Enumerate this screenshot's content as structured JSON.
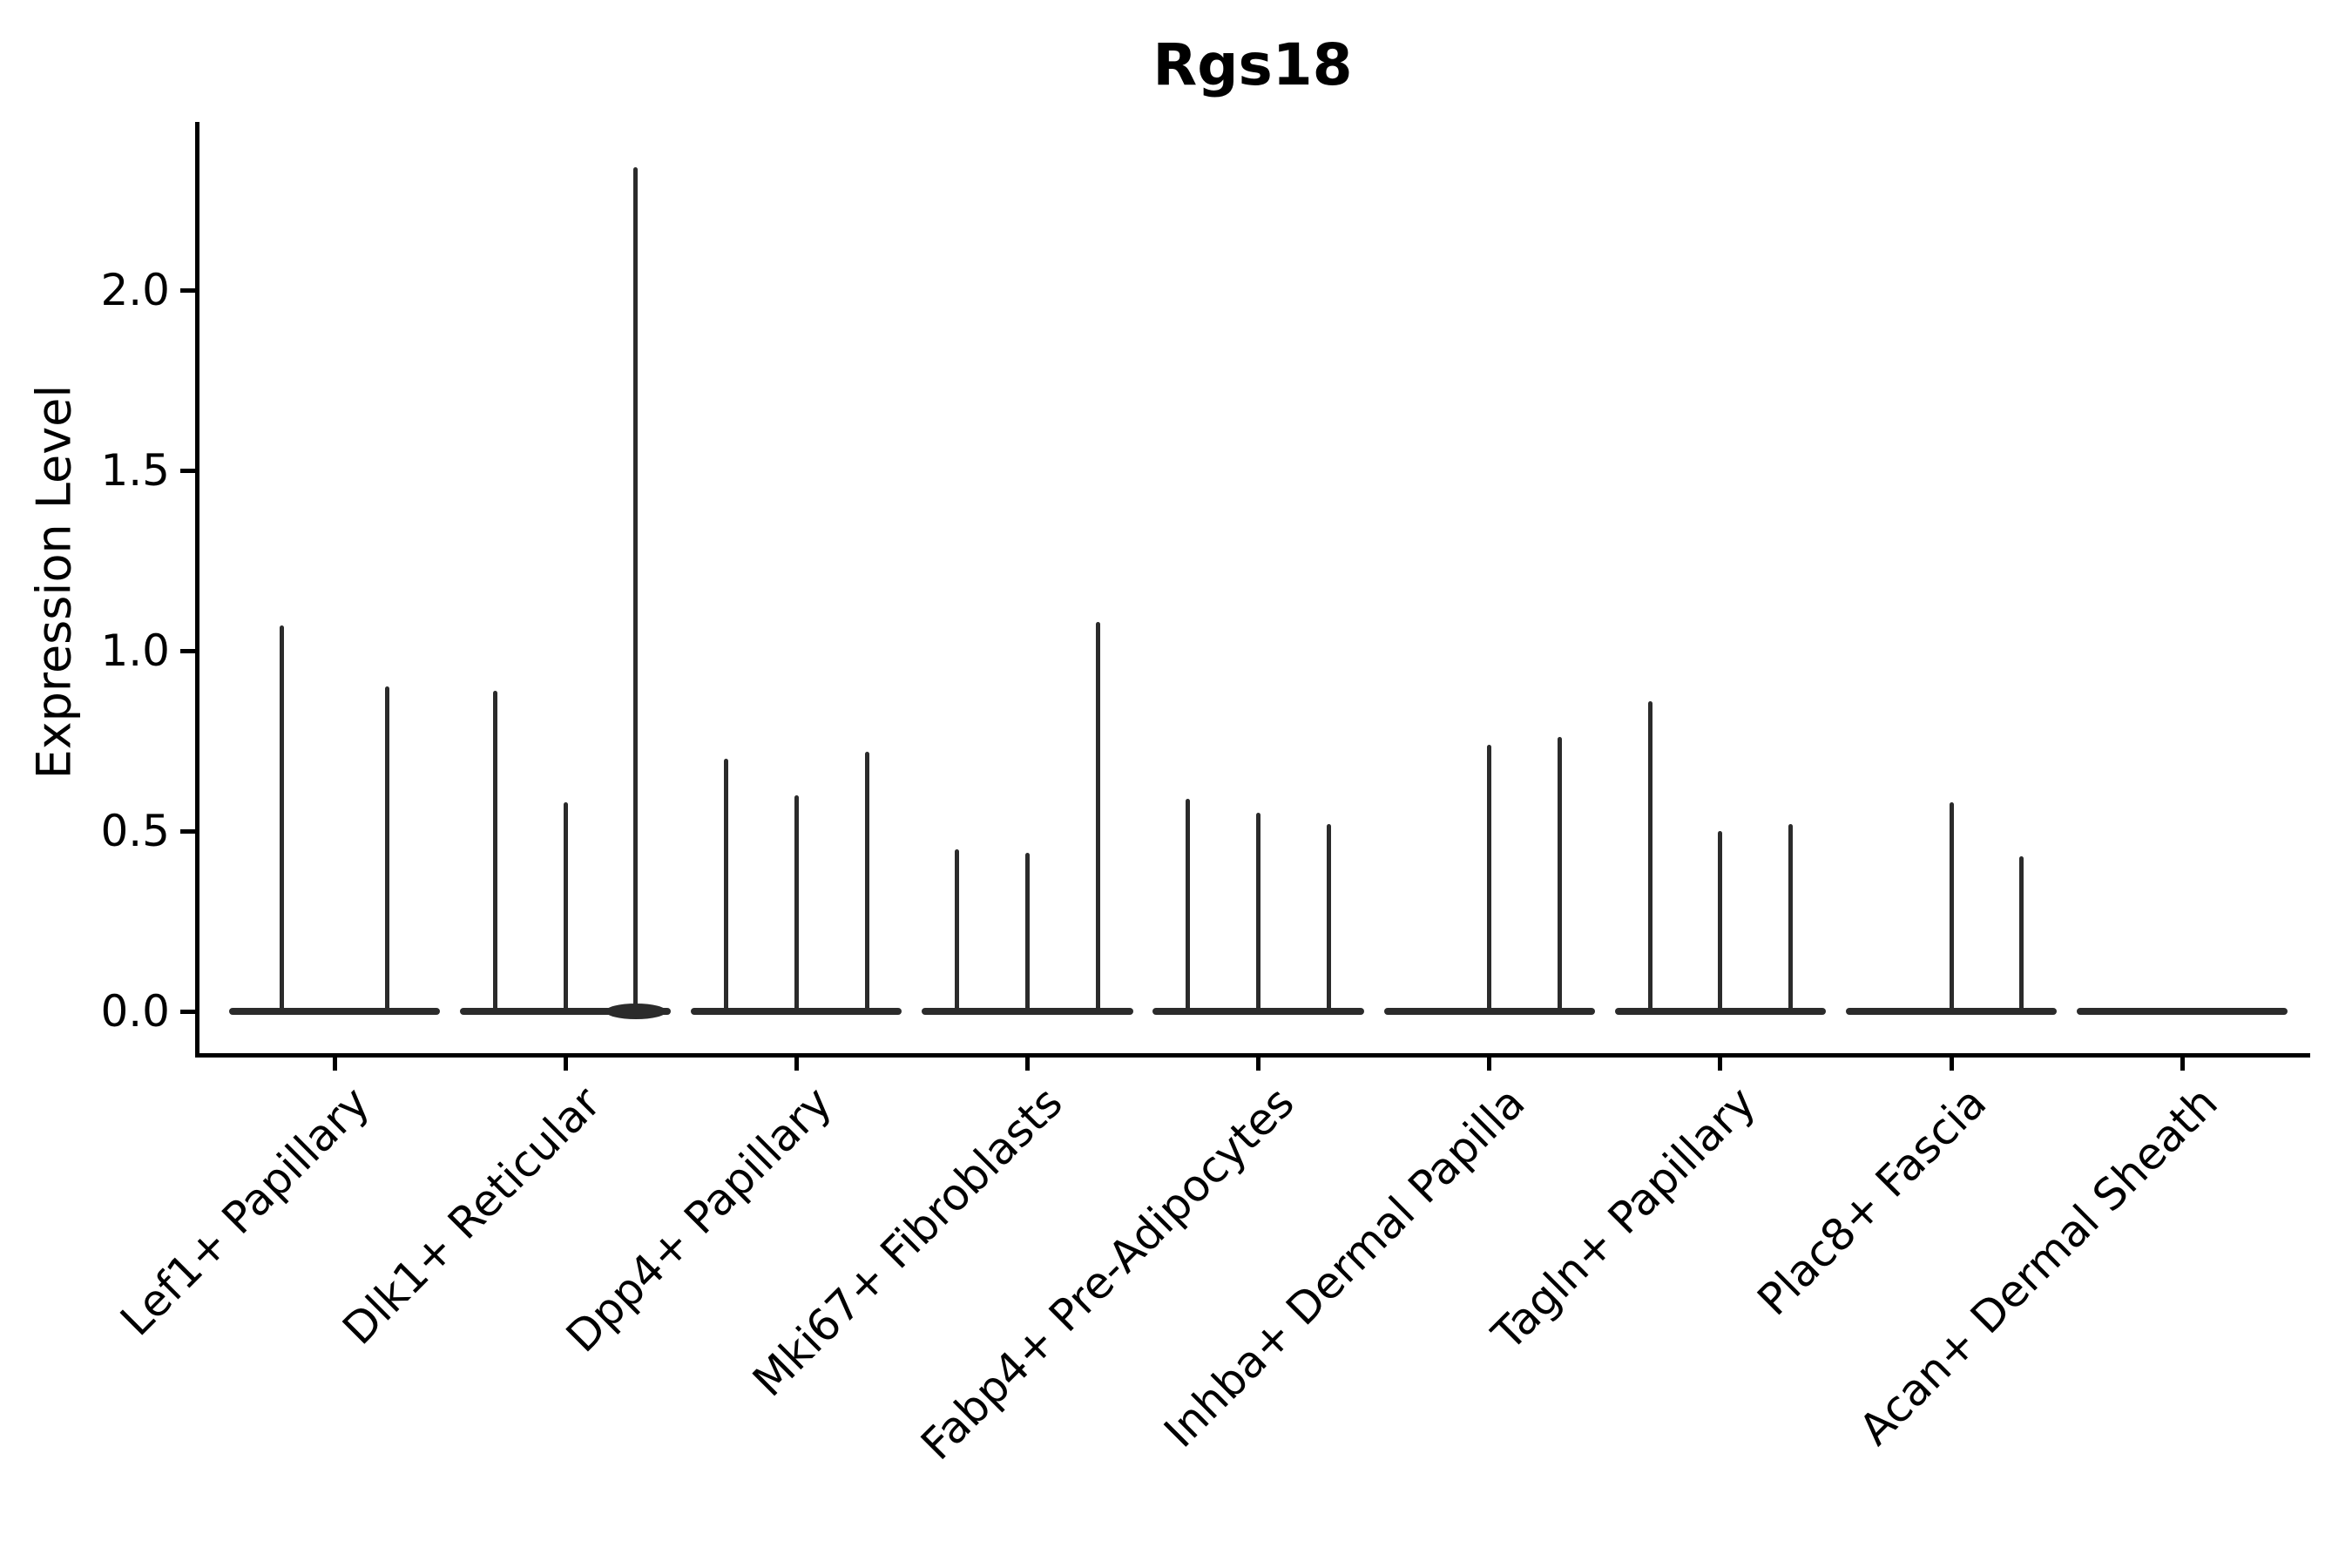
{
  "chart_data": {
    "type": "violin",
    "title": "Rgs18",
    "xlabel": "",
    "ylabel": "Expression Level",
    "ytick_labels": [
      "0.0",
      "0.5",
      "1.0",
      "1.5",
      "2.0"
    ],
    "ytick_values": [
      0.0,
      0.5,
      1.0,
      1.5,
      2.0
    ],
    "ylim": [
      -0.12,
      2.47
    ],
    "grid": false,
    "legend_position": "none",
    "line_color": "#2b2b2b",
    "categories": [
      "Lef1+ Papillary",
      "Dlk1+ Reticular",
      "Dpp4+ Papillary",
      "Mki67+ Fibroblasts",
      "Fabp4+ Pre-Adipocytes",
      "Inhba+ Dermal Papilla",
      "Tagln+ Papillary",
      "Plac8+ Fascia",
      "Acan+ Dermal Sheath"
    ],
    "groups": [
      {
        "label": "Lef1+ Papillary",
        "peaks": [
          1.07,
          0.9
        ]
      },
      {
        "label": "Dlk1+ Reticular",
        "peaks": [
          0.89,
          0.58,
          2.34
        ],
        "bulge_slot": 2
      },
      {
        "label": "Dpp4+ Papillary",
        "peaks": [
          0.7,
          0.6,
          0.72
        ]
      },
      {
        "label": "Mki67+ Fibroblasts",
        "peaks": [
          0.45,
          0.44,
          1.08
        ]
      },
      {
        "label": "Fabp4+ Pre-Adipocytes",
        "peaks": [
          0.59,
          0.55,
          0.52
        ]
      },
      {
        "label": "Inhba+ Dermal Papilla",
        "peaks": [
          0,
          0.74,
          0.76
        ]
      },
      {
        "label": "Tagln+ Papillary",
        "peaks": [
          0.86,
          0.5,
          0.52
        ]
      },
      {
        "label": "Plac8+ Fascia",
        "peaks": [
          0,
          0.58,
          0.43
        ]
      },
      {
        "label": "Acan+ Dermal Sheath",
        "peaks": [
          0,
          0,
          0
        ]
      }
    ]
  }
}
